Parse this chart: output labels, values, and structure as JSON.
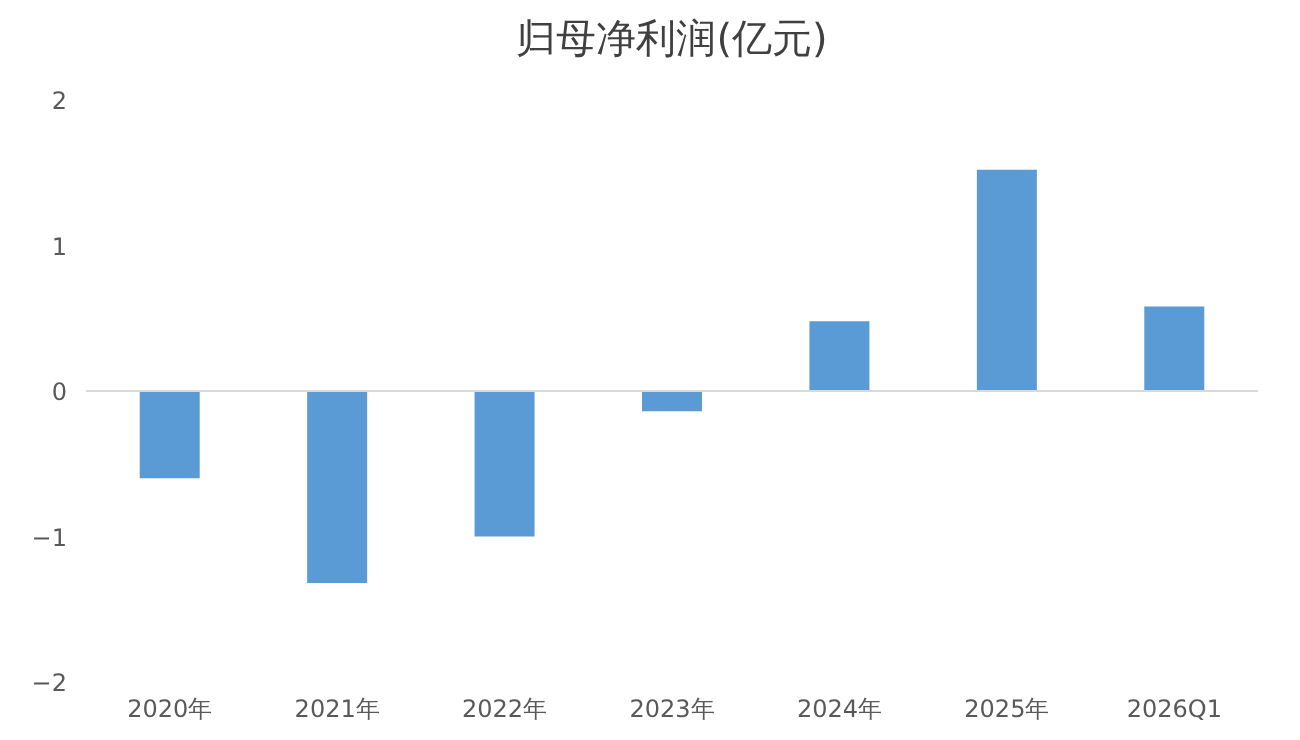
{
  "chart_data": {
    "type": "bar",
    "title": "归母净利润(亿元)",
    "categories": [
      "2020年",
      "2021年",
      "2022年",
      "2023年",
      "2024年",
      "2025年",
      "2026Q1"
    ],
    "values": [
      -0.6,
      -1.32,
      -1.0,
      -0.14,
      0.48,
      1.52,
      0.58
    ],
    "color": "#5b9bd5",
    "ylim": [
      -2,
      2
    ],
    "yticks": [
      -2,
      -1,
      0,
      1,
      2
    ],
    "grid": false,
    "ref_lines": [
      {
        "axis": "y",
        "value": 0,
        "color": "#d9d9d9"
      }
    ]
  }
}
